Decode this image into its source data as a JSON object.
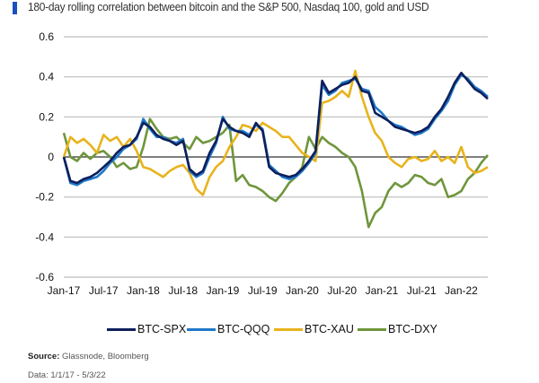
{
  "header": {
    "title": "180-day rolling correlation between bitcoin and the S&P 500, Nasdaq 100, gold and USD",
    "accent_color": "#1a4fbf"
  },
  "footer": {
    "source_label": "Source:",
    "source_text": " Glassnode, Bloomberg",
    "data_range": "Data: 1/1/17 - 5/3/22"
  },
  "chart_data": {
    "type": "line",
    "title": "180-day rolling correlation between bitcoin and the S&P 500, Nasdaq 100, gold and USD",
    "xlabel": "",
    "ylabel": "",
    "ylim": [
      -0.6,
      0.6
    ],
    "yticks": [
      0.6,
      0.4,
      0.2,
      0,
      -0.2,
      -0.4,
      -0.6
    ],
    "ytick_labels": [
      "0.6",
      "0.4",
      "0.2",
      "0",
      "-0.2",
      "-0.4",
      "-0.6"
    ],
    "xticks": [
      "Jan-17",
      "Jul-17",
      "Jan-18",
      "Jul-18",
      "Jan-19",
      "Jul-19",
      "Jan-20",
      "Jul-20",
      "Jan-21",
      "Jul-21",
      "Jan-22"
    ],
    "x_unit": "months since Jan-17",
    "xlim": [
      0,
      64
    ],
    "grid": true,
    "legend_position": "bottom",
    "x": [
      0,
      1,
      2,
      3,
      4,
      5,
      6,
      7,
      8,
      9,
      10,
      11,
      12,
      13,
      14,
      15,
      16,
      17,
      18,
      19,
      20,
      21,
      22,
      23,
      24,
      25,
      26,
      27,
      28,
      29,
      30,
      31,
      32,
      33,
      34,
      35,
      36,
      37,
      38,
      39,
      40,
      41,
      42,
      43,
      44,
      45,
      46,
      47,
      48,
      49,
      50,
      51,
      52,
      53,
      54,
      55,
      56,
      57,
      58,
      59,
      60,
      61,
      62,
      63,
      64
    ],
    "series": [
      {
        "name": "BTC-SPX",
        "color": "#0d1f5c",
        "values": [
          0.0,
          -0.12,
          -0.13,
          -0.11,
          -0.1,
          -0.08,
          -0.05,
          -0.02,
          0.02,
          0.05,
          0.06,
          0.1,
          0.17,
          0.15,
          0.11,
          0.09,
          0.08,
          0.06,
          0.08,
          -0.06,
          -0.09,
          -0.07,
          0.02,
          0.08,
          0.19,
          0.15,
          0.13,
          0.12,
          0.1,
          0.17,
          0.13,
          -0.05,
          -0.08,
          -0.09,
          -0.1,
          -0.09,
          -0.06,
          -0.02,
          0.03,
          0.38,
          0.32,
          0.34,
          0.36,
          0.37,
          0.4,
          0.33,
          0.32,
          0.22,
          0.2,
          0.18,
          0.15,
          0.14,
          0.13,
          0.12,
          0.13,
          0.15,
          0.2,
          0.24,
          0.3,
          0.37,
          0.42,
          0.38,
          0.34,
          0.32,
          0.29
        ]
      },
      {
        "name": "BTC-QQQ",
        "color": "#1f78c8",
        "values": [
          0.0,
          -0.13,
          -0.14,
          -0.12,
          -0.11,
          -0.1,
          -0.07,
          -0.03,
          0.0,
          0.04,
          0.06,
          0.09,
          0.19,
          0.14,
          0.1,
          0.1,
          0.08,
          0.07,
          0.09,
          -0.07,
          -0.1,
          -0.08,
          0.0,
          0.07,
          0.2,
          0.14,
          0.13,
          0.13,
          0.11,
          0.16,
          0.14,
          -0.04,
          -0.07,
          -0.1,
          -0.11,
          -0.1,
          -0.07,
          -0.03,
          0.02,
          0.36,
          0.31,
          0.33,
          0.37,
          0.38,
          0.39,
          0.34,
          0.33,
          0.25,
          0.22,
          0.18,
          0.16,
          0.15,
          0.13,
          0.11,
          0.12,
          0.14,
          0.19,
          0.23,
          0.28,
          0.36,
          0.41,
          0.39,
          0.35,
          0.33,
          0.3
        ]
      },
      {
        "name": "BTC-XAU",
        "color": "#e8b31c",
        "values": [
          0.0,
          0.1,
          0.07,
          0.09,
          0.06,
          0.02,
          0.11,
          0.08,
          0.1,
          0.05,
          0.09,
          0.03,
          -0.05,
          -0.06,
          -0.08,
          -0.1,
          -0.07,
          -0.05,
          -0.04,
          -0.08,
          -0.16,
          -0.19,
          -0.1,
          -0.05,
          -0.02,
          0.05,
          0.1,
          0.16,
          0.15,
          0.13,
          0.17,
          0.15,
          0.13,
          0.1,
          0.1,
          0.06,
          0.02,
          0.0,
          -0.02,
          0.27,
          0.28,
          0.3,
          0.33,
          0.3,
          0.43,
          0.3,
          0.2,
          0.12,
          0.08,
          0.0,
          -0.03,
          -0.05,
          -0.01,
          0.0,
          -0.02,
          -0.01,
          0.03,
          -0.02,
          0.0,
          -0.03,
          0.05,
          -0.05,
          -0.08,
          -0.07,
          -0.05
        ]
      },
      {
        "name": "BTC-DXY",
        "color": "#6f963c",
        "values": [
          0.12,
          0.0,
          -0.02,
          0.02,
          -0.01,
          0.02,
          0.03,
          0.0,
          -0.05,
          -0.03,
          -0.06,
          -0.05,
          0.05,
          0.19,
          0.14,
          0.1,
          0.09,
          0.1,
          0.07,
          0.04,
          0.1,
          0.07,
          0.08,
          0.1,
          0.12,
          0.16,
          -0.12,
          -0.09,
          -0.14,
          -0.15,
          -0.17,
          -0.2,
          -0.22,
          -0.18,
          -0.13,
          -0.1,
          -0.05,
          0.1,
          0.04,
          0.1,
          0.07,
          0.05,
          0.02,
          0.0,
          -0.05,
          -0.17,
          -0.35,
          -0.28,
          -0.25,
          -0.17,
          -0.13,
          -0.15,
          -0.13,
          -0.09,
          -0.1,
          -0.13,
          -0.14,
          -0.11,
          -0.2,
          -0.19,
          -0.17,
          -0.11,
          -0.08,
          -0.03,
          0.01
        ]
      }
    ]
  }
}
